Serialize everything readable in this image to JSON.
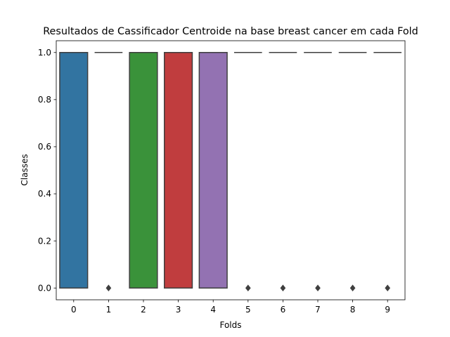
{
  "chart_data": {
    "type": "box",
    "title": "Resultados de Cassificador Centroide na base breast cancer em cada Fold",
    "xlabel": "Folds",
    "ylabel": "Classes",
    "categories": [
      "0",
      "1",
      "2",
      "3",
      "4",
      "5",
      "6",
      "7",
      "8",
      "9"
    ],
    "ylim": [
      -0.05,
      1.05
    ],
    "yticks": [
      0.0,
      0.2,
      0.4,
      0.6,
      0.8,
      1.0
    ],
    "ytick_labels": [
      "0.0",
      "0.2",
      "0.4",
      "0.6",
      "0.8",
      "1.0"
    ],
    "grid": false,
    "boxes": [
      {
        "fold": "0",
        "q1": 0,
        "median": 1,
        "q3": 1,
        "whisker_low": 0,
        "whisker_high": 1,
        "outliers": [],
        "color": "#3274a1"
      },
      {
        "fold": "1",
        "q1": 1,
        "median": 1,
        "q3": 1,
        "whisker_low": 1,
        "whisker_high": 1,
        "outliers": [
          0
        ],
        "color": "#e1812c"
      },
      {
        "fold": "2",
        "q1": 0,
        "median": 1,
        "q3": 1,
        "whisker_low": 0,
        "whisker_high": 1,
        "outliers": [],
        "color": "#3a923a"
      },
      {
        "fold": "3",
        "q1": 0,
        "median": 1,
        "q3": 1,
        "whisker_low": 0,
        "whisker_high": 1,
        "outliers": [],
        "color": "#c03d3e"
      },
      {
        "fold": "4",
        "q1": 0,
        "median": 1,
        "q3": 1,
        "whisker_low": 0,
        "whisker_high": 1,
        "outliers": [],
        "color": "#9372b2"
      },
      {
        "fold": "5",
        "q1": 1,
        "median": 1,
        "q3": 1,
        "whisker_low": 1,
        "whisker_high": 1,
        "outliers": [
          0
        ],
        "color": "#845b53"
      },
      {
        "fold": "6",
        "q1": 1,
        "median": 1,
        "q3": 1,
        "whisker_low": 1,
        "whisker_high": 1,
        "outliers": [
          0
        ],
        "color": "#d684bd"
      },
      {
        "fold": "7",
        "q1": 1,
        "median": 1,
        "q3": 1,
        "whisker_low": 1,
        "whisker_high": 1,
        "outliers": [
          0
        ],
        "color": "#7f7f7f"
      },
      {
        "fold": "8",
        "q1": 1,
        "median": 1,
        "q3": 1,
        "whisker_low": 1,
        "whisker_high": 1,
        "outliers": [
          0
        ],
        "color": "#a9aa35"
      },
      {
        "fold": "9",
        "q1": 1,
        "median": 1,
        "q3": 1,
        "whisker_low": 1,
        "whisker_high": 1,
        "outliers": [
          0
        ],
        "color": "#2ea1b4"
      }
    ],
    "line_color": "#3f3f3f"
  }
}
